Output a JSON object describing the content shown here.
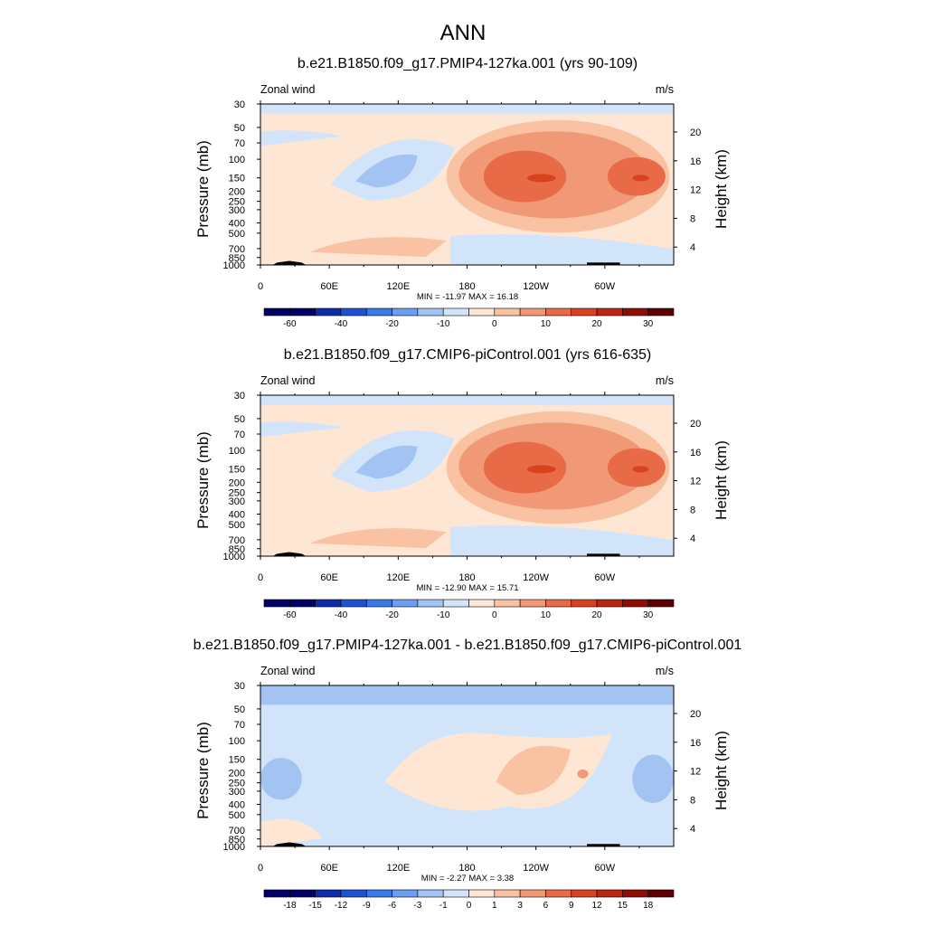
{
  "main_title": "ANN",
  "colors": {
    "levels10": [
      "#000066",
      "#0d2ca8",
      "#1f52d2",
      "#3a7ae8",
      "#6d9eef",
      "#a3c3f3",
      "#d2e4fa",
      "#fde6d4",
      "#f8c2a3",
      "#f19977",
      "#e86a47",
      "#d9421f",
      "#bb2612",
      "#8f0d04",
      "#5e0000"
    ],
    "diff": [
      "#000066",
      "#0d2ca8",
      "#1f52d2",
      "#3a7ae8",
      "#6d9eef",
      "#a3c3f3",
      "#d2e4fa",
      "#fde6d4",
      "#f8c2a3",
      "#f19977",
      "#e86a47",
      "#d9421f",
      "#bb2612",
      "#8f0d04",
      "#5e0000"
    ]
  },
  "chart_data": [
    {
      "type": "heatmap",
      "title": "b.e21.B1850.f09_g17.PMIP4-127ka.001 (yrs 90-109)",
      "left_label": "Zonal wind",
      "right_label": "m/s",
      "ylabel": "Pressure (mb)",
      "ylabel_right": "Height (km)",
      "x_ticks": [
        "0",
        "60E",
        "120E",
        "180",
        "120W",
        "60W"
      ],
      "y_ticks": [
        "30",
        "50",
        "70",
        "100",
        "150",
        "200",
        "250",
        "300",
        "400",
        "500",
        "700",
        "850",
        "1000"
      ],
      "y_ticks_right": [
        "20",
        "16",
        "12",
        "8",
        "4"
      ],
      "stats": "MIN = -11.97  MAX =  16.18",
      "colorbar_labels": [
        "-60",
        "-40",
        "-20",
        "-10",
        "0",
        "10",
        "20",
        "30"
      ],
      "min": -11.97,
      "max": 16.18
    },
    {
      "type": "heatmap",
      "title": "b.e21.B1850.f09_g17.CMIP6-piControl.001 (yrs 616-635)",
      "left_label": "Zonal wind",
      "right_label": "m/s",
      "ylabel": "Pressure (mb)",
      "ylabel_right": "Height (km)",
      "x_ticks": [
        "0",
        "60E",
        "120E",
        "180",
        "120W",
        "60W"
      ],
      "y_ticks": [
        "30",
        "50",
        "70",
        "100",
        "150",
        "200",
        "250",
        "300",
        "400",
        "500",
        "700",
        "850",
        "1000"
      ],
      "y_ticks_right": [
        "20",
        "16",
        "12",
        "8",
        "4"
      ],
      "stats": "MIN = -12.90  MAX =  15.71",
      "colorbar_labels": [
        "-60",
        "-40",
        "-20",
        "-10",
        "0",
        "10",
        "20",
        "30"
      ],
      "min": -12.9,
      "max": 15.71
    },
    {
      "type": "heatmap",
      "title": "b.e21.B1850.f09_g17.PMIP4-127ka.001 - b.e21.B1850.f09_g17.CMIP6-piControl.001",
      "left_label": "Zonal wind",
      "right_label": "m/s",
      "ylabel": "Pressure (mb)",
      "ylabel_right": "Height (km)",
      "x_ticks": [
        "0",
        "60E",
        "120E",
        "180",
        "120W",
        "60W"
      ],
      "y_ticks": [
        "30",
        "50",
        "70",
        "100",
        "150",
        "200",
        "250",
        "300",
        "400",
        "500",
        "700",
        "850",
        "1000"
      ],
      "y_ticks_right": [
        "20",
        "16",
        "12",
        "8",
        "4"
      ],
      "stats": "MIN = -2.27  MAX =  3.38",
      "colorbar_labels": [
        "-18",
        "-15",
        "-12",
        "-9",
        "-6",
        "-3",
        "-1",
        "0",
        "1",
        "3",
        "6",
        "9",
        "12",
        "15",
        "18"
      ],
      "min": -2.27,
      "max": 3.38
    }
  ]
}
